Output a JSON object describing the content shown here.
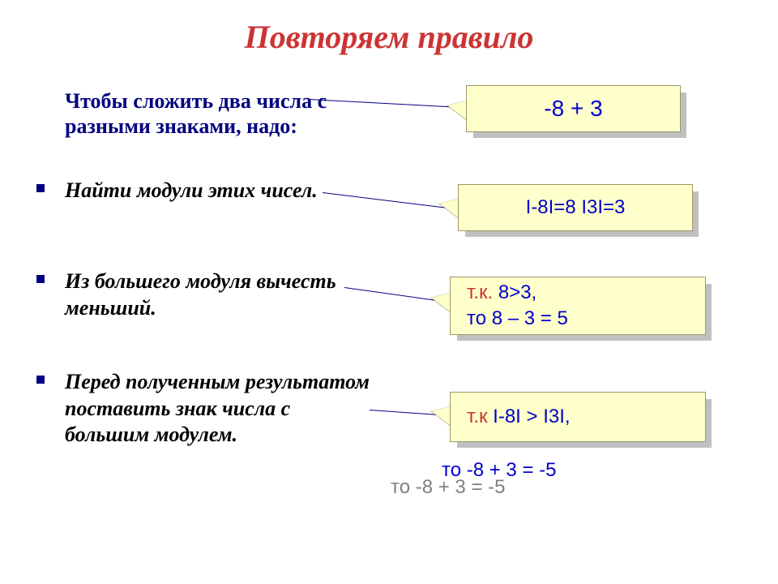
{
  "title": "Повторяем правило",
  "intro": "Чтобы сложить два числа с разными знаками, надо:",
  "bullets": [
    "Найти модули этих чисел.",
    "Из большего модуля вычесть меньший.",
    "Перед полученным результатом поставить знак числа с большим модулем."
  ],
  "callouts": {
    "c1": "-8 + 3",
    "c2": "І-8І=8   І3І=3",
    "c3_prefix": "т.к.",
    "c3_rest_line1": " 8>3,",
    "c3_line2": "   то 8 – 3 = 5",
    "c4_prefix": "т.к",
    "c4_rest": "  І-8І > І3І,"
  },
  "below_main": "то -8 + 3 = -5",
  "below_shadow": "то -8 + 3 = -5",
  "style": {
    "title_color": "#cc3333",
    "intro_color": "#000080",
    "callout_bg": "#ffffcc",
    "callout_border": "#999966",
    "callout_text": "#0000cc",
    "shadow_color": "#c0c0c0",
    "title_fontsize": 40,
    "body_fontsize": 26,
    "callout_fontsize": 24,
    "font_body": "Times New Roman",
    "font_callout": "Arial"
  }
}
